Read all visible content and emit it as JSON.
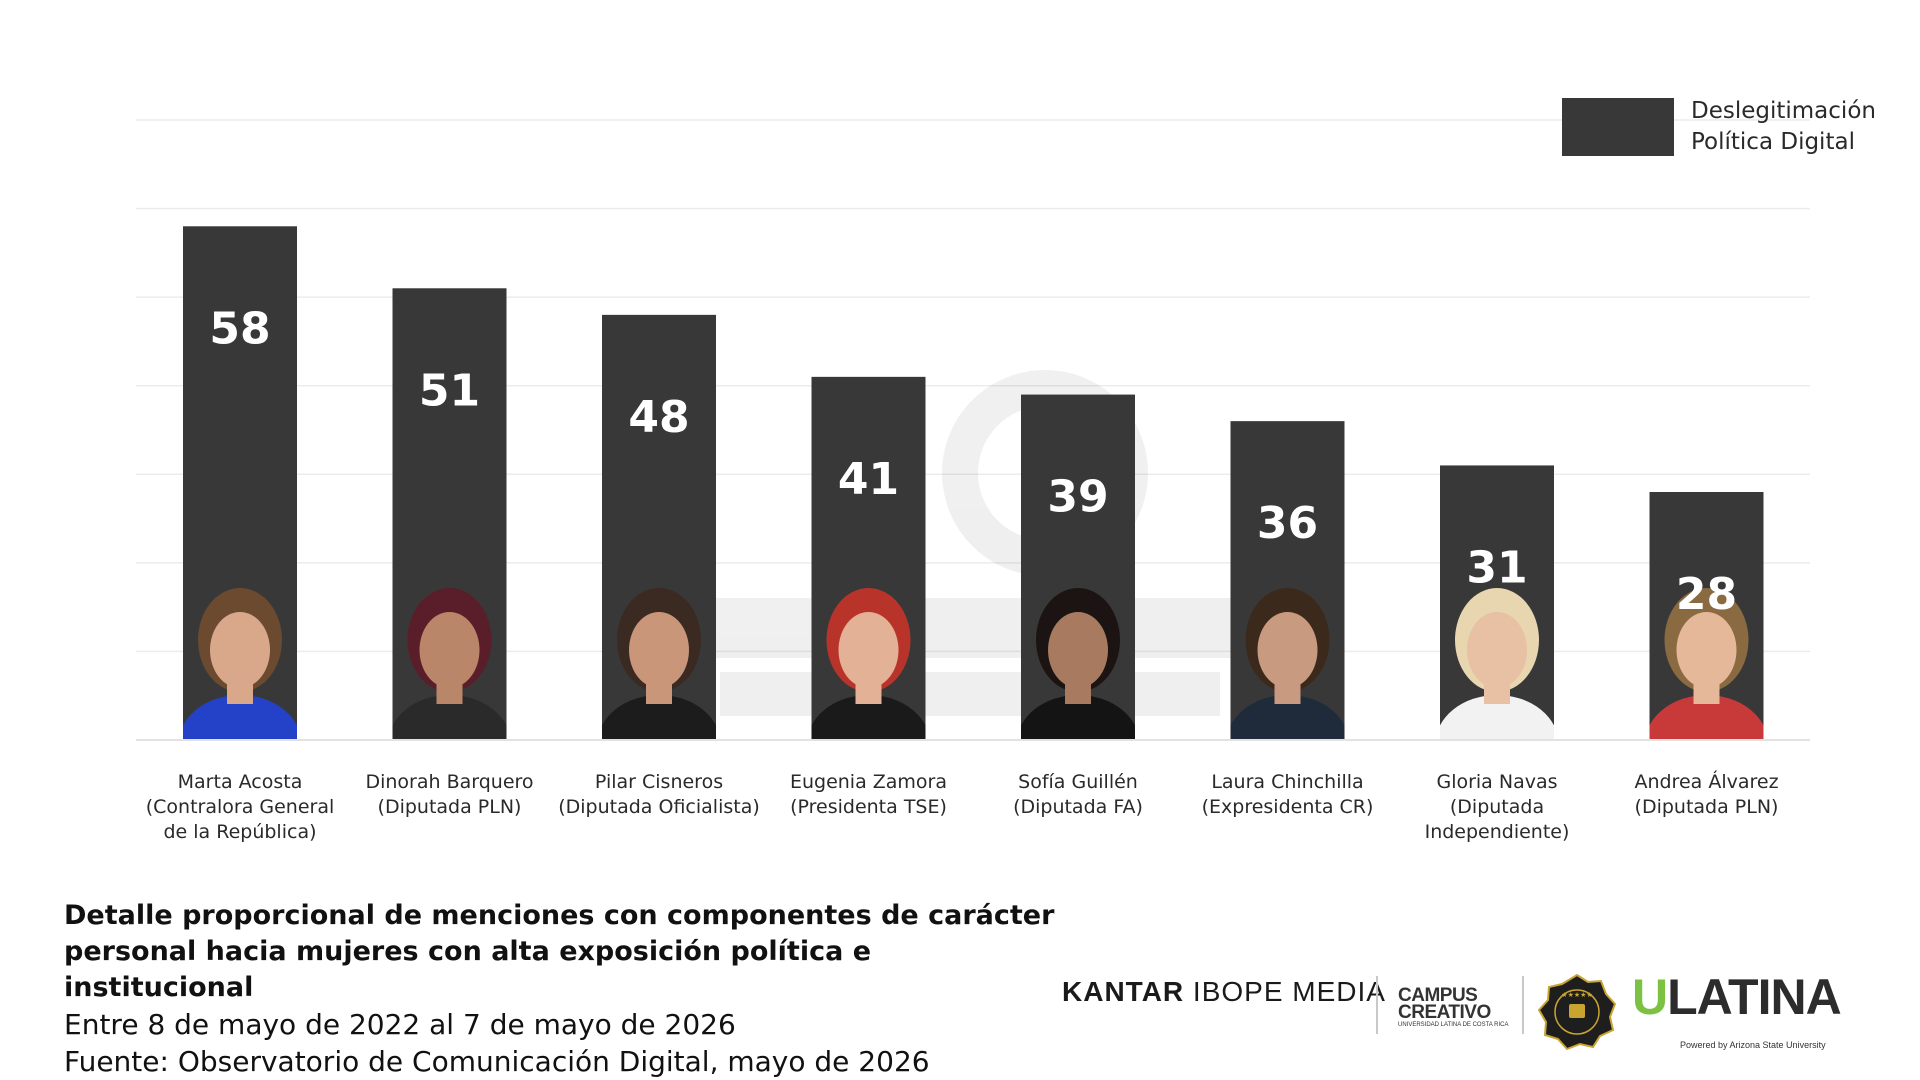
{
  "chart_data": {
    "type": "bar",
    "categories": [
      "Marta Acosta\n(Contralora General\nde la República)",
      "Dinorah Barquero\n(Diputada PLN)",
      "Pilar Cisneros\n(Diputada Oficialista)",
      "Eugenia  Zamora\n(Presidenta TSE)",
      "Sofía Guillén\n(Diputada FA)",
      "Laura Chinchilla\n(Expresidenta CR)",
      "Gloria Navas\n(Diputada\nIndependiente)",
      "Andrea Álvarez\n(Diputada PLN)"
    ],
    "series": [
      {
        "name": "Deslegitimación Política Digital",
        "values": [
          58,
          51,
          48,
          41,
          39,
          36,
          31,
          28
        ],
        "color": "#383838"
      }
    ],
    "ylim": [
      0,
      70
    ],
    "grid": true,
    "legend": "top-right",
    "title": "",
    "xlabel": "",
    "ylabel": ""
  },
  "legend": {
    "label": "Deslegitimación\nPolítica Digital"
  },
  "caption": {
    "title": "Detalle proporcional de menciones con componentes de carácter\npersonal hacia mujeres con alta exposición política e institucional",
    "period": "Entre 8 de mayo de 2022 al 7 de mayo de 2026",
    "source": "Fuente: Observatorio de Comunicación Digital, mayo de 2026"
  },
  "logos": {
    "kantar_bold": "KANTAR",
    "kantar_rest": "IBOPE MEDIA",
    "campus_line1": "CAMPUS",
    "campus_line2": "CREATIVO",
    "campus_sub": "UNIVERSIDAD LATINA DE COSTA RICA",
    "ulatina_u": "U",
    "ulatina_rest": "LATINA",
    "ulatina_sub": "Powered by Arizona State University"
  },
  "colors": {
    "bar": "#383838",
    "bar_label": "#ffffff",
    "grid": "#ececec",
    "ulatina_green": "#7cc142"
  }
}
